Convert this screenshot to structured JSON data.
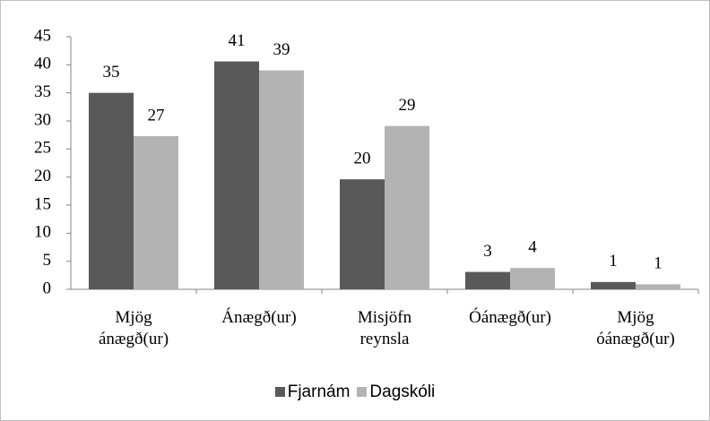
{
  "chart_data": {
    "type": "bar",
    "categories": [
      "Mjög ánægð(ur)",
      "Ánægð(ur)",
      "Misjöfn reynsla",
      "Óánægð(ur)",
      "Mjög óánægð(ur)"
    ],
    "series": [
      {
        "name": "Fjarnám",
        "color": "#595959",
        "values": [
          35.0,
          40.6,
          19.6,
          3.1,
          1.3
        ],
        "value_labels": [
          "35",
          "41",
          "20",
          "3",
          "1"
        ]
      },
      {
        "name": "Dagskóli",
        "color": "#b3b3b3",
        "values": [
          27.3,
          39.0,
          29.1,
          3.8,
          0.9
        ],
        "value_labels": [
          "27",
          "39",
          "29",
          "4",
          "1"
        ]
      }
    ],
    "ylim": [
      0,
      45
    ],
    "yticks": [
      0,
      5,
      10,
      15,
      20,
      25,
      30,
      35,
      40,
      45
    ],
    "grid": false,
    "legend": "bottom"
  }
}
